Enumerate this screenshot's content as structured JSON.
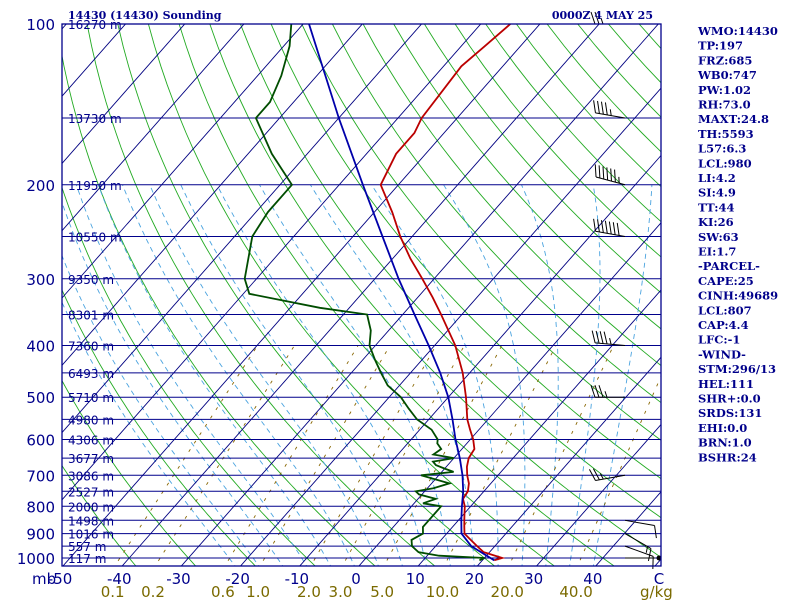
{
  "header": {
    "title_left": "14430 (14430) Sounding",
    "title_right": "0000Z  4 MAY 25"
  },
  "indices": [
    "WMO:14430",
    "TP:197",
    "FRZ:685",
    "WB0:747",
    "PW:1.02",
    "RH:73.0",
    "MAXT:24.8",
    "TH:5593",
    "L57:6.3",
    "LCL:980",
    "LI:4.2",
    "SI:4.9",
    "TT:44",
    "KI:26",
    "SW:63",
    "EI:1.7",
    "-PARCEL-",
    "CAPE:25",
    "CINH:49689",
    "LCL:807",
    "CAP:4.4",
    "LFC:-1",
    "-WIND-",
    "STM:296/13",
    "HEL:111",
    "SHR+:0.0",
    "SRDS:131",
    "EHI:0.0",
    "BRN:1.0",
    "BSHR:24"
  ],
  "colors": {
    "frame": "#00008b",
    "isobar": "#00008b",
    "isotherm": "#000080",
    "dry_adiabat": "#22aa22",
    "moist_adiabat": "#4aa3df",
    "mixing_ratio": "#886600",
    "temperature": "#bb0000",
    "dewpoint": "#004d00",
    "parcel": "#0000aa",
    "wind": "#000000"
  },
  "chart_data": {
    "type": "skew-t",
    "pressure_ticks": [
      "100",
      "200",
      "300",
      "400",
      "500",
      "600",
      "700",
      "800",
      "900",
      "1000"
    ],
    "pressure_values": [
      100,
      200,
      300,
      400,
      500,
      600,
      700,
      800,
      900,
      1000
    ],
    "pressure_range": [
      100,
      1050
    ],
    "temperature_axis_label": "mb",
    "temperature_ticks": [
      "-50",
      "-40",
      "-30",
      "-20",
      "-10",
      "0",
      "10",
      "20",
      "30",
      "40",
      "C"
    ],
    "temperature_values": [
      -50,
      -40,
      -30,
      -20,
      -10,
      0,
      10,
      20,
      30,
      40
    ],
    "mixing_ratio_unit": "g/kg",
    "mixing_ratio_ticks": [
      "0.1",
      "0.2",
      "0.6",
      "1.0",
      "2.0",
      "3.0",
      "5.0",
      "10.0",
      "20.0",
      "40.0"
    ],
    "mixing_ratio_values": [
      0.1,
      0.2,
      0.6,
      1.0,
      2.0,
      3.0,
      5.0,
      10.0,
      20.0,
      40.0
    ],
    "height_levels": [
      {
        "p": 100,
        "label": "16270 m"
      },
      {
        "p": 150,
        "label": "13730 m"
      },
      {
        "p": 200,
        "label": "11950 m"
      },
      {
        "p": 250,
        "label": "10550 m"
      },
      {
        "p": 300,
        "label": "9350 m"
      },
      {
        "p": 350,
        "label": "8301 m"
      },
      {
        "p": 400,
        "label": "7360 m"
      },
      {
        "p": 450,
        "label": "6493 m"
      },
      {
        "p": 500,
        "label": "5710 m"
      },
      {
        "p": 550,
        "label": "4980 m"
      },
      {
        "p": 600,
        "label": "4306 m"
      },
      {
        "p": 650,
        "label": "3677 m"
      },
      {
        "p": 700,
        "label": "3086 m"
      },
      {
        "p": 750,
        "label": "2527 m"
      },
      {
        "p": 800,
        "label": "2000 m"
      },
      {
        "p": 850,
        "label": "1498 m"
      },
      {
        "p": 900,
        "label": "1016 m"
      },
      {
        "p": 950,
        "label": "557 m"
      },
      {
        "p": 1000,
        "label": "117 m"
      }
    ],
    "temperature_profile": [
      [
        1010,
        22
      ],
      [
        1000,
        23
      ],
      [
        975,
        19
      ],
      [
        950,
        17
      ],
      [
        925,
        15
      ],
      [
        900,
        13
      ],
      [
        875,
        12
      ],
      [
        850,
        11
      ],
      [
        825,
        10
      ],
      [
        800,
        9
      ],
      [
        775,
        7.6
      ],
      [
        750,
        7.3
      ],
      [
        725,
        6.3
      ],
      [
        700,
        4.8
      ],
      [
        675,
        3.5
      ],
      [
        650,
        2.5
      ],
      [
        625,
        2.1
      ],
      [
        600,
        0.5
      ],
      [
        575,
        -1.5
      ],
      [
        550,
        -3.5
      ],
      [
        500,
        -7
      ],
      [
        450,
        -11.2
      ],
      [
        400,
        -16.5
      ],
      [
        350,
        -23.5
      ],
      [
        325,
        -27.5
      ],
      [
        300,
        -32
      ],
      [
        275,
        -37
      ],
      [
        250,
        -42
      ],
      [
        225,
        -47
      ],
      [
        200,
        -53
      ],
      [
        175,
        -55
      ],
      [
        160,
        -55
      ],
      [
        150,
        -56
      ],
      [
        120,
        -57
      ],
      [
        110,
        -56
      ],
      [
        100,
        -55
      ]
    ],
    "dewpoint_profile": [
      [
        1010,
        19.5
      ],
      [
        1000,
        20
      ],
      [
        990,
        12
      ],
      [
        975,
        8
      ],
      [
        950,
        6
      ],
      [
        925,
        5
      ],
      [
        900,
        6
      ],
      [
        875,
        5
      ],
      [
        850,
        5
      ],
      [
        825,
        5
      ],
      [
        800,
        5
      ],
      [
        790,
        1.5
      ],
      [
        775,
        3
      ],
      [
        760,
        -0.5
      ],
      [
        750,
        -1.5
      ],
      [
        740,
        1
      ],
      [
        725,
        3
      ],
      [
        700,
        -3
      ],
      [
        690,
        2
      ],
      [
        680,
        0
      ],
      [
        670,
        -2
      ],
      [
        660,
        -3
      ],
      [
        650,
        0
      ],
      [
        640,
        -4
      ],
      [
        625,
        -3.5
      ],
      [
        610,
        -5
      ],
      [
        600,
        -5.5
      ],
      [
        575,
        -8
      ],
      [
        550,
        -12
      ],
      [
        525,
        -15
      ],
      [
        500,
        -18
      ],
      [
        475,
        -22
      ],
      [
        450,
        -25
      ],
      [
        425,
        -28
      ],
      [
        400,
        -31
      ],
      [
        375,
        -33
      ],
      [
        350,
        -36
      ],
      [
        340,
        -45
      ],
      [
        320,
        -59
      ],
      [
        300,
        -62
      ],
      [
        250,
        -67
      ],
      [
        225,
        -68
      ],
      [
        200,
        -68
      ],
      [
        175,
        -76
      ],
      [
        150,
        -84
      ],
      [
        140,
        -84
      ],
      [
        125,
        -86
      ],
      [
        110,
        -89
      ],
      [
        100,
        -92
      ]
    ],
    "parcel_profile": [
      [
        1010,
        22
      ],
      [
        950,
        16
      ],
      [
        900,
        12.5
      ],
      [
        850,
        10.5
      ],
      [
        800,
        8.5
      ],
      [
        750,
        6.5
      ],
      [
        700,
        4
      ],
      [
        650,
        1
      ],
      [
        600,
        -2.5
      ],
      [
        550,
        -6
      ],
      [
        500,
        -10
      ],
      [
        450,
        -15
      ],
      [
        400,
        -21
      ],
      [
        350,
        -28
      ],
      [
        300,
        -36
      ],
      [
        250,
        -45
      ],
      [
        200,
        -56
      ],
      [
        150,
        -70
      ],
      [
        100,
        -89
      ]
    ],
    "wind_barbs": [
      {
        "p": 1000,
        "dir": 90,
        "spd": 2
      },
      {
        "p": 950,
        "dir": 110,
        "spd": 10
      },
      {
        "p": 900,
        "dir": 120,
        "spd": 15
      },
      {
        "p": 850,
        "dir": 100,
        "spd": 10
      },
      {
        "p": 700,
        "dir": 260,
        "spd": 25
      },
      {
        "p": 500,
        "dir": 270,
        "spd": 35
      },
      {
        "p": 400,
        "dir": 275,
        "spd": 45
      },
      {
        "p": 250,
        "dir": 280,
        "spd": 70
      },
      {
        "p": 200,
        "dir": 285,
        "spd": 65
      },
      {
        "p": 150,
        "dir": 280,
        "spd": 45
      },
      {
        "p": 100,
        "dir": 270,
        "spd": 25
      }
    ]
  }
}
